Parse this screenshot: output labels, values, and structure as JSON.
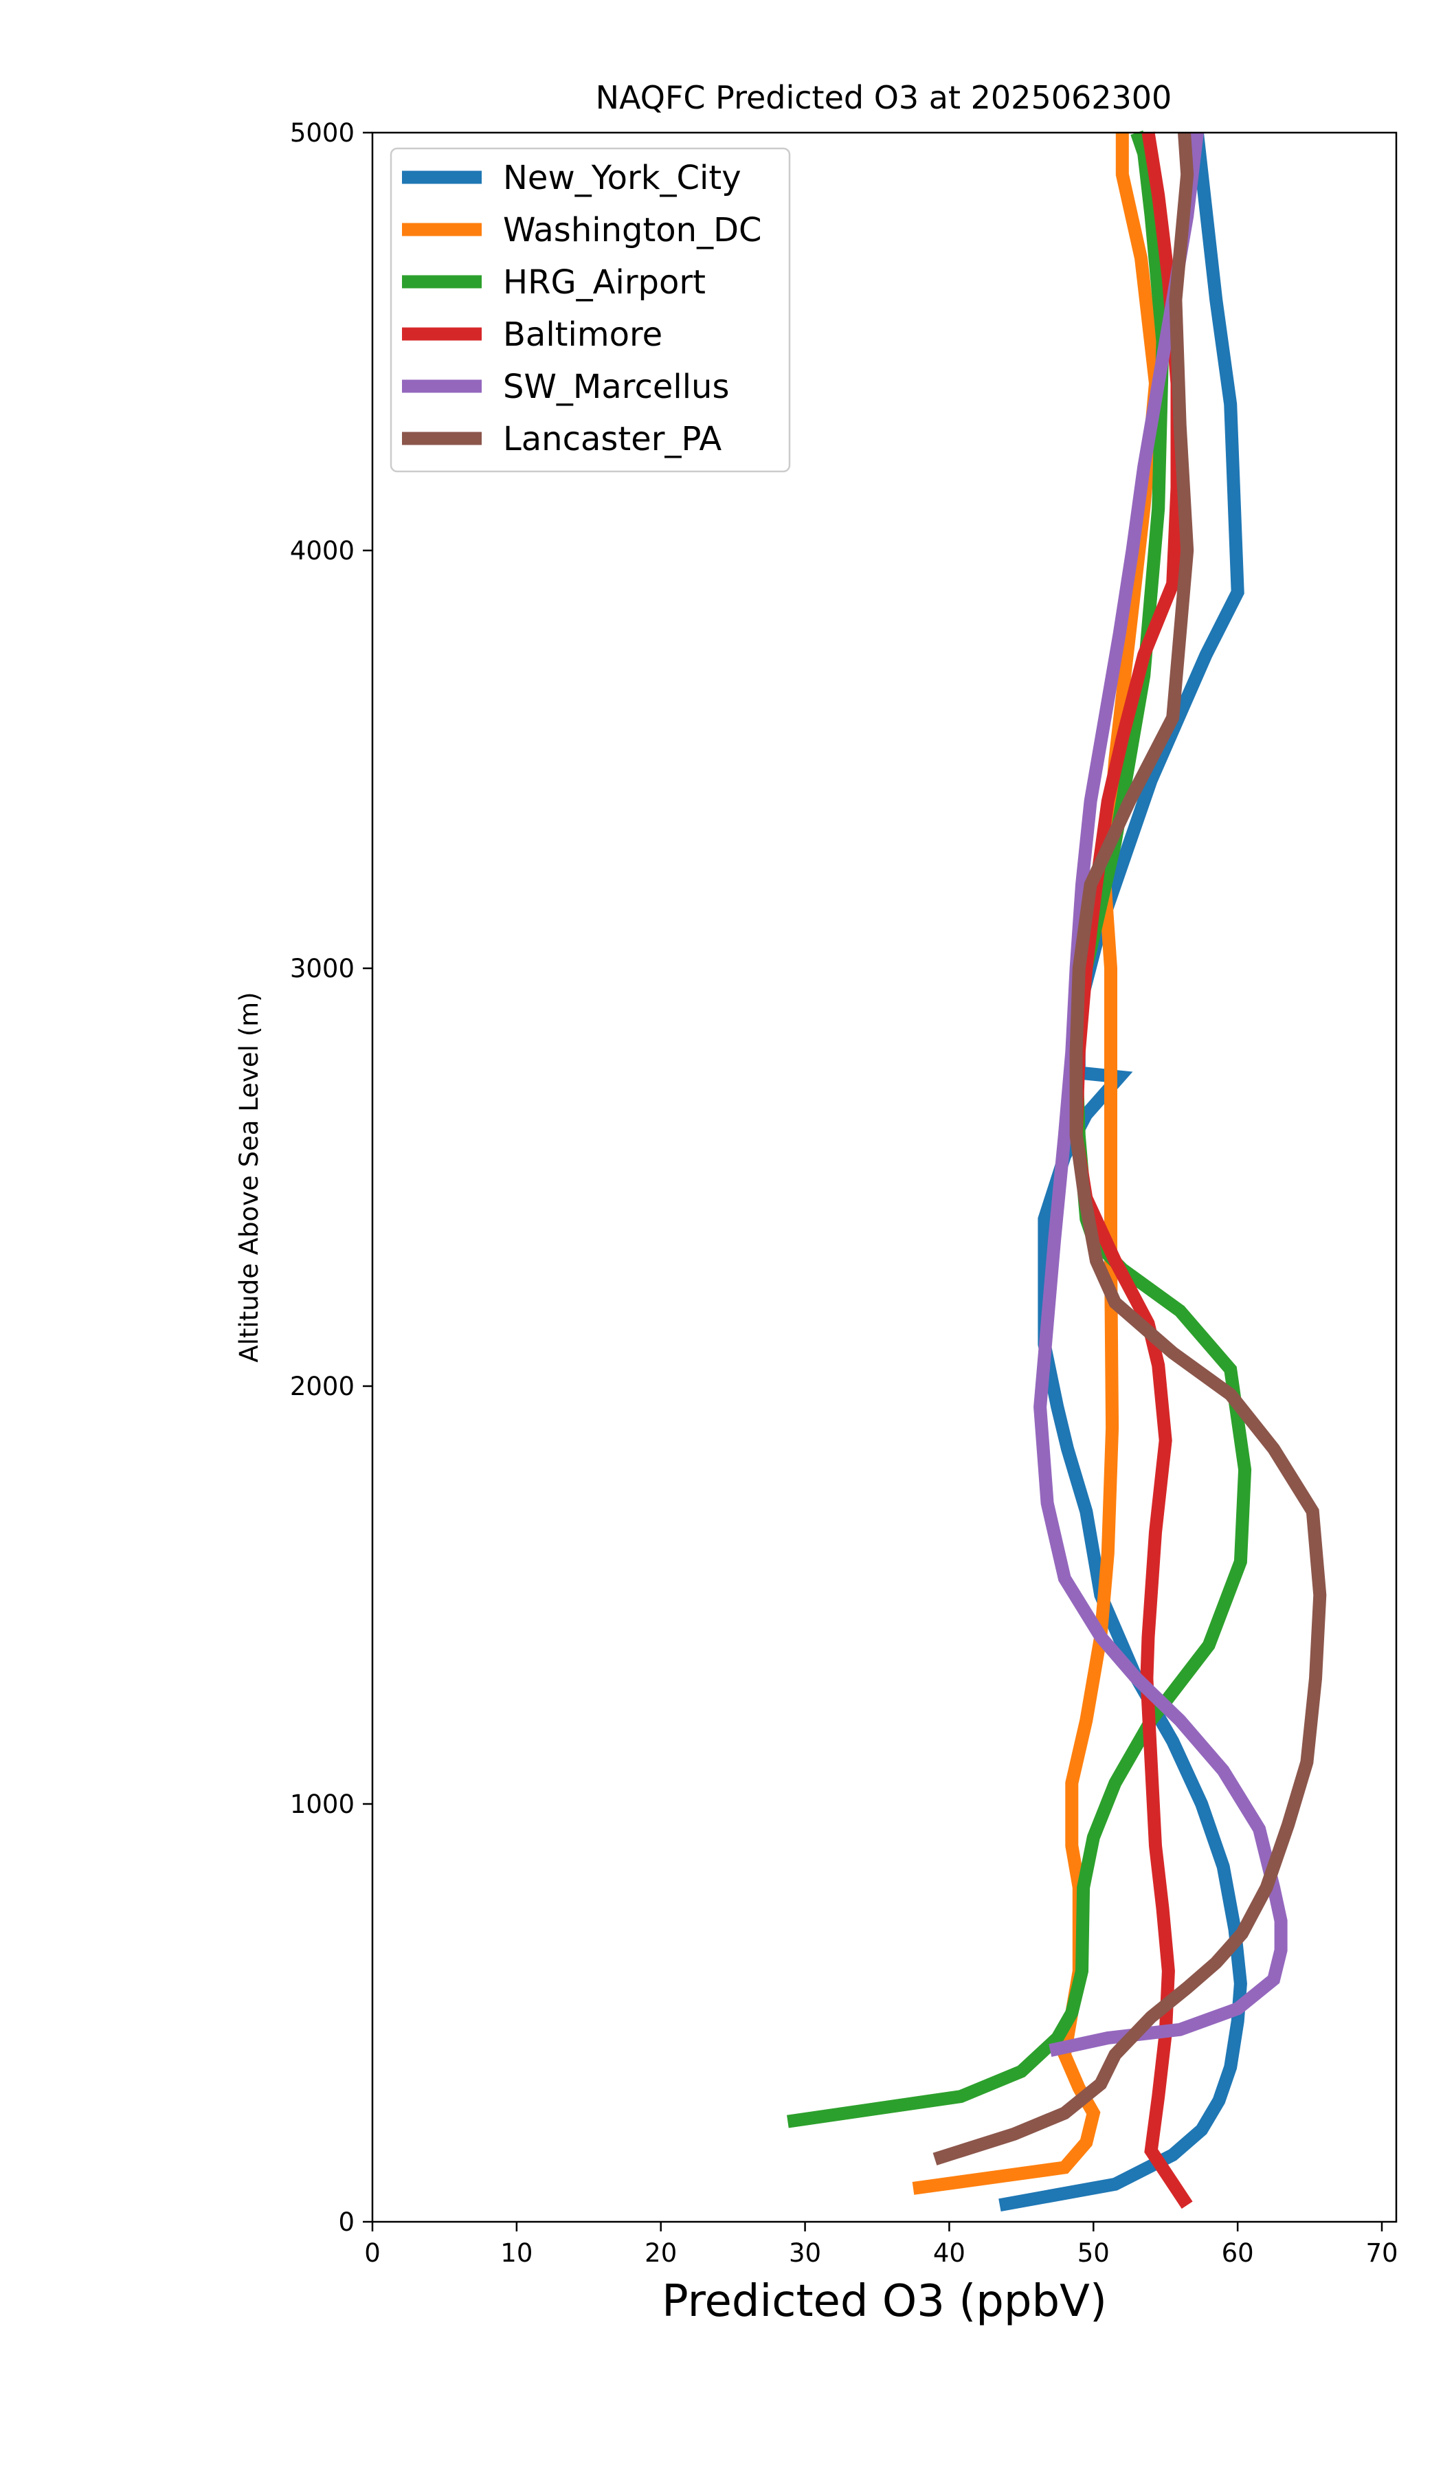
{
  "chart_data": {
    "type": "line",
    "title": "NAQFC Predicted O3 at 2025062300",
    "xlabel": "Predicted O3 (ppbV)",
    "ylabel": "Altitude Above Sea Level (m)",
    "xlim": [
      0,
      71
    ],
    "ylim": [
      0,
      5000
    ],
    "xticks": [
      0,
      10,
      20,
      30,
      40,
      50,
      60,
      70
    ],
    "yticks": [
      0,
      1000,
      2000,
      3000,
      4000,
      5000
    ],
    "grid": false,
    "legend_position": "upper-left",
    "series": [
      {
        "name": "New_York_City",
        "color": "#1f77b4",
        "points": [
          [
            43.5,
            40
          ],
          [
            51.5,
            90
          ],
          [
            55.5,
            160
          ],
          [
            57.5,
            220
          ],
          [
            58.7,
            290
          ],
          [
            59.5,
            370
          ],
          [
            60,
            480
          ],
          [
            60.2,
            570
          ],
          [
            59.8,
            700
          ],
          [
            59,
            850
          ],
          [
            57.5,
            1000
          ],
          [
            55.5,
            1150
          ],
          [
            53,
            1300
          ],
          [
            50.5,
            1500
          ],
          [
            49.5,
            1700
          ],
          [
            48.2,
            1850
          ],
          [
            47.5,
            1950
          ],
          [
            46.6,
            2100
          ],
          [
            46.6,
            2400
          ],
          [
            48,
            2550
          ],
          [
            49.5,
            2650
          ],
          [
            51.8,
            2740
          ],
          [
            49,
            2750
          ],
          [
            49,
            2900
          ],
          [
            50.5,
            3100
          ],
          [
            54,
            3450
          ],
          [
            57.8,
            3750
          ],
          [
            60,
            3900
          ],
          [
            59.5,
            4350
          ],
          [
            58.5,
            4600
          ],
          [
            57.2,
            5000
          ]
        ]
      },
      {
        "name": "Washington_DC",
        "color": "#ff7f0e",
        "points": [
          [
            37.5,
            80
          ],
          [
            48,
            130
          ],
          [
            49.5,
            190
          ],
          [
            50,
            260
          ],
          [
            49,
            320
          ],
          [
            48,
            400
          ],
          [
            49,
            600
          ],
          [
            49,
            800
          ],
          [
            48.5,
            900
          ],
          [
            48.5,
            1050
          ],
          [
            49.5,
            1200
          ],
          [
            50.5,
            1400
          ],
          [
            51,
            1600
          ],
          [
            51.3,
            1900
          ],
          [
            51.2,
            2300
          ],
          [
            51.2,
            2700
          ],
          [
            51.2,
            3000
          ],
          [
            50.8,
            3200
          ],
          [
            51.5,
            3500
          ],
          [
            52.5,
            3800
          ],
          [
            53.5,
            4100
          ],
          [
            54.3,
            4400
          ],
          [
            53.3,
            4700
          ],
          [
            52,
            4900
          ],
          [
            52,
            5000
          ]
        ]
      },
      {
        "name": "HRG_Airport",
        "color": "#2ca02c",
        "points": [
          [
            28.8,
            240
          ],
          [
            40.8,
            300
          ],
          [
            45,
            360
          ],
          [
            47.5,
            440
          ],
          [
            48.5,
            500
          ],
          [
            49.2,
            600
          ],
          [
            49.3,
            800
          ],
          [
            50,
            920
          ],
          [
            51.5,
            1050
          ],
          [
            54,
            1200
          ],
          [
            58,
            1380
          ],
          [
            60.2,
            1580
          ],
          [
            60.5,
            1800
          ],
          [
            59.5,
            2040
          ],
          [
            56,
            2180
          ],
          [
            52,
            2280
          ],
          [
            50,
            2350
          ],
          [
            49.5,
            2400
          ],
          [
            49,
            2600
          ],
          [
            48.8,
            2800
          ],
          [
            49.5,
            3000
          ],
          [
            51.5,
            3300
          ],
          [
            53.5,
            3700
          ],
          [
            54.5,
            4100
          ],
          [
            54.8,
            4500
          ],
          [
            54,
            4800
          ],
          [
            53.5,
            4950
          ],
          [
            53,
            5000
          ]
        ]
      },
      {
        "name": "Baltimore",
        "color": "#d62728",
        "points": [
          [
            56.5,
            40
          ],
          [
            54,
            170
          ],
          [
            54.5,
            300
          ],
          [
            55,
            450
          ],
          [
            55.2,
            600
          ],
          [
            54.8,
            750
          ],
          [
            54.3,
            900
          ],
          [
            54,
            1100
          ],
          [
            53.7,
            1300
          ],
          [
            53.8,
            1400
          ],
          [
            54.3,
            1650
          ],
          [
            55,
            1870
          ],
          [
            54.5,
            2050
          ],
          [
            53.8,
            2150
          ],
          [
            51.5,
            2300
          ],
          [
            49.5,
            2450
          ],
          [
            48.8,
            2600
          ],
          [
            49,
            2800
          ],
          [
            49.5,
            3000
          ],
          [
            50.2,
            3200
          ],
          [
            51,
            3400
          ],
          [
            52,
            3550
          ],
          [
            53.5,
            3750
          ],
          [
            55.5,
            3920
          ],
          [
            55.8,
            4150
          ],
          [
            55.8,
            4400
          ],
          [
            55.2,
            4650
          ],
          [
            54.5,
            4850
          ],
          [
            53.8,
            5000
          ]
        ]
      },
      {
        "name": "SW_Marcellus",
        "color": "#9467bd",
        "points": [
          [
            47,
            410
          ],
          [
            51,
            440
          ],
          [
            56,
            460
          ],
          [
            60,
            510
          ],
          [
            62.5,
            580
          ],
          [
            63,
            650
          ],
          [
            63,
            720
          ],
          [
            62.5,
            800
          ],
          [
            61.5,
            940
          ],
          [
            59,
            1080
          ],
          [
            56,
            1200
          ],
          [
            53,
            1300
          ],
          [
            50.5,
            1400
          ],
          [
            48,
            1540
          ],
          [
            46.8,
            1720
          ],
          [
            46.3,
            1950
          ],
          [
            46.8,
            2150
          ],
          [
            47.3,
            2350
          ],
          [
            48,
            2600
          ],
          [
            48.5,
            2800
          ],
          [
            48.8,
            3000
          ],
          [
            49.2,
            3200
          ],
          [
            49.8,
            3400
          ],
          [
            50.8,
            3600
          ],
          [
            51.8,
            3800
          ],
          [
            52.7,
            4000
          ],
          [
            53.5,
            4200
          ],
          [
            54.5,
            4400
          ],
          [
            55.5,
            4600
          ],
          [
            56.5,
            4800
          ],
          [
            57.2,
            5000
          ]
        ]
      },
      {
        "name": "Lancaster_PA",
        "color": "#8c564b",
        "points": [
          [
            39,
            150
          ],
          [
            44.5,
            210
          ],
          [
            48,
            260
          ],
          [
            50.5,
            330
          ],
          [
            51.5,
            400
          ],
          [
            54,
            490
          ],
          [
            56.5,
            560
          ],
          [
            58.5,
            620
          ],
          [
            60.3,
            690
          ],
          [
            62,
            800
          ],
          [
            63.5,
            950
          ],
          [
            64.8,
            1100
          ],
          [
            65.4,
            1300
          ],
          [
            65.7,
            1500
          ],
          [
            65.2,
            1700
          ],
          [
            62.5,
            1850
          ],
          [
            59.5,
            1980
          ],
          [
            55.5,
            2080
          ],
          [
            51.5,
            2200
          ],
          [
            50.2,
            2300
          ],
          [
            49.4,
            2450
          ],
          [
            48.8,
            2600
          ],
          [
            48.8,
            2800
          ],
          [
            49,
            3000
          ],
          [
            49.8,
            3200
          ],
          [
            52.5,
            3400
          ],
          [
            55.5,
            3600
          ],
          [
            56.5,
            4000
          ],
          [
            56,
            4300
          ],
          [
            55.7,
            4600
          ],
          [
            56.5,
            4900
          ],
          [
            56.3,
            5000
          ]
        ]
      }
    ]
  }
}
